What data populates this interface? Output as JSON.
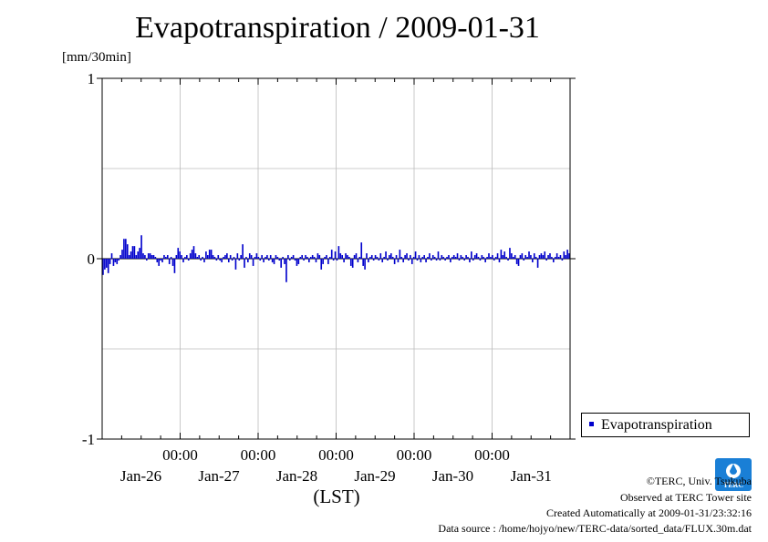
{
  "title": "Evapotranspiration / 2009-01-31",
  "unit_label": "[mm/30min]",
  "xlabel": "(LST)",
  "legend": {
    "label": "Evapotranspiration",
    "color": "#0000cc"
  },
  "logo": {
    "text": "TERC",
    "color": "#1a7fd6",
    "icon": "terc-logo-icon"
  },
  "credits": {
    "line1": "©TERC, Univ. Tsukuba",
    "line2": "Observed at TERC Tower site",
    "line3": "Created Automatically at 2009-01-31/23:32:16",
    "line4": "Data source : /home/hojyo/new/TERC-data/sorted_data/FLUX.30m.dat"
  },
  "chart_data": {
    "type": "bar",
    "title": "Evapotranspiration / 2009-01-31",
    "ylabel": "[mm/30min]",
    "xlabel": "(LST)",
    "ylim": [
      -1,
      1
    ],
    "yticks": [
      {
        "value": 1,
        "label": "1"
      },
      {
        "value": 0,
        "label": "0"
      },
      {
        "value": -1,
        "label": "-1"
      }
    ],
    "ygrid": [
      0.5,
      -0.5
    ],
    "x_unit": "hours",
    "xlim": [
      0,
      144
    ],
    "xticks": [
      {
        "x": 24,
        "time": "00:00",
        "date": "Jan-26"
      },
      {
        "x": 48,
        "time": "00:00",
        "date": "Jan-27"
      },
      {
        "x": 72,
        "time": "00:00",
        "date": "Jan-28"
      },
      {
        "x": 96,
        "time": "00:00",
        "date": "Jan-29"
      },
      {
        "x": 120,
        "time": "00:00",
        "date": "Jan-30"
      },
      {
        "x": 144,
        "time": "",
        "date": "Jan-31"
      }
    ],
    "grid": true,
    "legend_position": "right",
    "series": [
      {
        "name": "Evapotranspiration",
        "color": "#0000cc",
        "values": [
          -0.09,
          -0.06,
          -0.05,
          -0.08,
          -0.03,
          0.03,
          -0.04,
          -0.02,
          -0.03,
          -0.01,
          0.02,
          0.05,
          0.11,
          0.11,
          0.08,
          0.02,
          0.04,
          0.07,
          0.07,
          0.02,
          0.04,
          0.06,
          0.13,
          0.03,
          0.02,
          -0.01,
          0.03,
          0.03,
          0.02,
          0.02,
          0.01,
          -0.02,
          -0.04,
          -0.01,
          -0.02,
          0.02,
          0.01,
          0.02,
          -0.03,
          0.01,
          -0.04,
          -0.08,
          0.02,
          0.06,
          0.04,
          0.02,
          -0.02,
          0.01,
          0.02,
          -0.01,
          0.03,
          0.05,
          0.07,
          0.03,
          0.01,
          0.02,
          -0.01,
          0.01,
          -0.02,
          0.04,
          0.02,
          0.05,
          0.05,
          0.02,
          0.01,
          -0.01,
          0.02,
          -0.01,
          -0.02,
          0.01,
          0.02,
          0.03,
          -0.02,
          0.02,
          -0.01,
          0.01,
          -0.06,
          0.03,
          -0.01,
          0.02,
          0.08,
          -0.05,
          0.01,
          -0.02,
          0.03,
          0.02,
          -0.04,
          0.01,
          0.03,
          0.01,
          -0.01,
          0.02,
          -0.02,
          0.01,
          0.02,
          -0.01,
          0.02,
          -0.02,
          -0.03,
          0.02,
          0.01,
          -0.01,
          -0.05,
          0.01,
          -0.03,
          -0.13,
          0.02,
          -0.01,
          0.01,
          0.02,
          -0.01,
          -0.04,
          -0.03,
          0.01,
          0.02,
          -0.01,
          0.02,
          0.01,
          -0.02,
          0.01,
          0.02,
          0.01,
          -0.02,
          0.03,
          0.02,
          -0.06,
          -0.03,
          0.01,
          0.02,
          -0.03,
          0.01,
          0.05,
          -0.01,
          0.04,
          -0.01,
          0.07,
          0.03,
          0.02,
          -0.02,
          0.03,
          0.02,
          0.01,
          -0.04,
          -0.05,
          0.02,
          0.03,
          -0.02,
          0.01,
          0.09,
          -0.04,
          -0.06,
          0.03,
          -0.02,
          0.01,
          0.02,
          -0.01,
          0.02,
          0.01,
          -0.01,
          0.03,
          -0.02,
          0.01,
          0.04,
          -0.01,
          0.02,
          0.03,
          0.01,
          -0.03,
          0.02,
          -0.02,
          0.05,
          0.01,
          -0.02,
          0.02,
          0.03,
          -0.01,
          0.02,
          -0.03,
          0.01,
          0.04,
          -0.01,
          0.02,
          -0.02,
          0.01,
          0.02,
          -0.02,
          0.01,
          0.03,
          -0.01,
          0.02,
          0.01,
          -0.01,
          0.04,
          -0.01,
          0.02,
          0.01,
          -0.01,
          0.01,
          0.02,
          -0.02,
          0.01,
          0.02,
          0.01,
          0.03,
          -0.01,
          0.02,
          0.01,
          -0.01,
          0.02,
          0.01,
          -0.02,
          0.04,
          -0.01,
          0.02,
          0.03,
          0.01,
          -0.01,
          0.02,
          0.01,
          -0.02,
          0.01,
          0.03,
          0.01,
          0.02,
          -0.01,
          0.01,
          0.03,
          -0.02,
          0.05,
          0.02,
          0.04,
          0.01,
          -0.01,
          0.06,
          0.03,
          0.01,
          0.02,
          -0.03,
          -0.04,
          0.02,
          0.03,
          -0.01,
          0.02,
          0.01,
          0.04,
          0.02,
          -0.02,
          0.03,
          0.01,
          -0.05,
          0.02,
          0.03,
          0.02,
          0.04,
          -0.01,
          0.02,
          0.03,
          0.01,
          -0.02,
          0.01,
          0.03,
          0.01,
          0.02,
          -0.01,
          0.04,
          0.02,
          0.05,
          0.03
        ]
      }
    ]
  }
}
